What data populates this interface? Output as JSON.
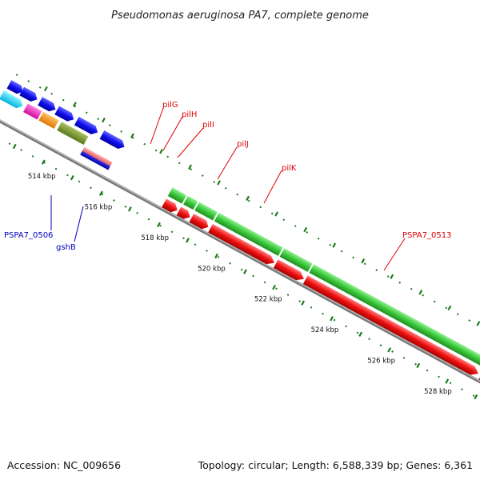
{
  "title": "Pseudomonas aeruginosa PA7, complete genome",
  "footer": {
    "accession": "Accession: NC_009656",
    "topology": "Topology: circular; Length: 6,588,339 bp; Genes: 6,361"
  },
  "colors": {
    "backbone": "#7a7a7a",
    "tick": "#1a7a1a",
    "forward_gene": "#3cc83c",
    "reverse_gene": "#ee1111",
    "label_red": "#dd0000",
    "label_blue": "#0000bb"
  },
  "scale_ticks": [
    {
      "label": "514 kbp"
    },
    {
      "label": "516 kbp"
    },
    {
      "label": "518 kbp"
    },
    {
      "label": "520 kbp"
    },
    {
      "label": "522 kbp"
    },
    {
      "label": "524 kbp"
    },
    {
      "label": "526 kbp"
    },
    {
      "label": "528 kbp"
    }
  ],
  "gene_labels": [
    {
      "text": "pilG",
      "color": "#dd0000"
    },
    {
      "text": "pilH",
      "color": "#dd0000"
    },
    {
      "text": "pilI",
      "color": "#dd0000"
    },
    {
      "text": "pilJ",
      "color": "#dd0000"
    },
    {
      "text": "pilK",
      "color": "#dd0000"
    },
    {
      "text": "PSPA7_0513",
      "color": "#dd0000"
    },
    {
      "text": "PSPA7_0506",
      "color": "#0000bb"
    },
    {
      "text": "gshB",
      "color": "#0000bb"
    }
  ]
}
